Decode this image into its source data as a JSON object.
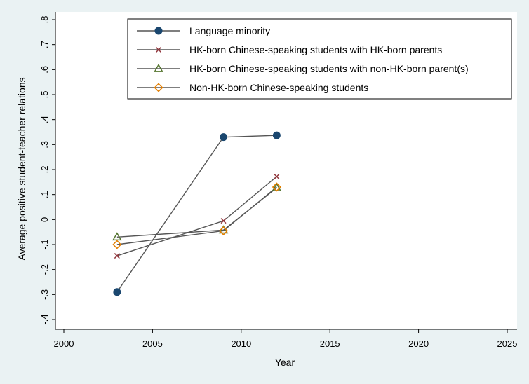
{
  "chart_data": {
    "type": "line",
    "title": "",
    "xlabel": "Year",
    "ylabel": "Average positive student-teacher relations",
    "xlim": [
      2000,
      2025
    ],
    "ylim": [
      -0.4,
      0.8
    ],
    "xticks": [
      2000,
      2005,
      2010,
      2015,
      2020,
      2025
    ],
    "xtick_labels": [
      "2000",
      "2005",
      "2010",
      "2015",
      "2020",
      "2025"
    ],
    "yticks": [
      -0.4,
      -0.3,
      -0.2,
      -0.1,
      0,
      0.1,
      0.2,
      0.3,
      0.4,
      0.5,
      0.6,
      0.7,
      0.8
    ],
    "ytick_labels": [
      "-.4",
      "-.3",
      "-.2",
      "-.1",
      "0",
      ".1",
      ".2",
      ".3",
      ".4",
      ".5",
      ".6",
      ".7",
      ".8"
    ],
    "grid": false,
    "legend_position": "top",
    "series": [
      {
        "name": "Language minority",
        "marker": "circle",
        "color": "#1a476f",
        "x": [
          2003,
          2009,
          2012
        ],
        "y": [
          -0.29,
          0.33,
          0.337
        ]
      },
      {
        "name": "HK-born Chinese-speaking students with HK-born parents",
        "marker": "x",
        "color": "#90353b",
        "x": [
          2003,
          2009,
          2012
        ],
        "y": [
          -0.145,
          -0.005,
          0.172
        ]
      },
      {
        "name": "HK-born Chinese-speaking students with non-HK-born parent(s)",
        "marker": "triangle",
        "color": "#55752f",
        "x": [
          2003,
          2009,
          2012
        ],
        "y": [
          -0.07,
          -0.042,
          0.127
        ]
      },
      {
        "name": "Non-HK-born Chinese-speaking students",
        "marker": "diamond",
        "color": "#e37e00",
        "x": [
          2003,
          2009,
          2012
        ],
        "y": [
          -0.1,
          -0.045,
          0.13
        ]
      }
    ],
    "line_color": "#555555",
    "axis_color": "#000000",
    "plot_background": "#ffffff",
    "frame_background": "#eaf2f3"
  }
}
